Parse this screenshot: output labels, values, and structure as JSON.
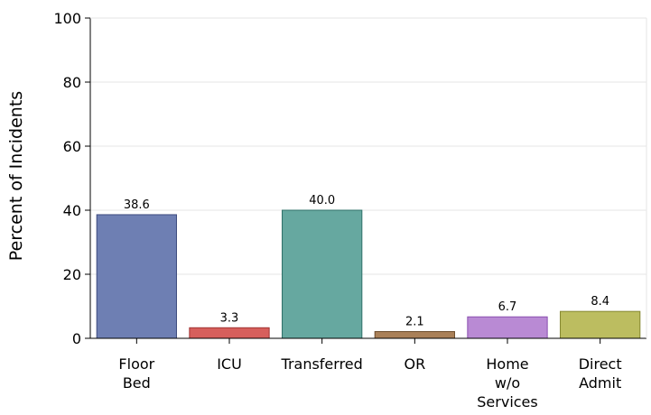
{
  "chart_data": {
    "type": "bar",
    "title": "",
    "xlabel": "",
    "ylabel": "Percent of Incidents",
    "ylim": [
      0,
      100
    ],
    "yticks": [
      0,
      20,
      40,
      60,
      80,
      100
    ],
    "grid": true,
    "categories": [
      [
        "Floor",
        "Bed"
      ],
      [
        "ICU"
      ],
      [
        "Transferred"
      ],
      [
        "OR"
      ],
      [
        "Home",
        "w/o",
        "Services"
      ],
      [
        "Direct",
        "Admit"
      ]
    ],
    "values": [
      38.6,
      3.3,
      40.0,
      2.1,
      6.7,
      8.4
    ],
    "value_labels": [
      "38.6",
      "3.3",
      "40.0",
      "2.1",
      "6.7",
      "8.4"
    ],
    "colors": [
      "#6e7fb3",
      "#d65f5c",
      "#66a8a0",
      "#a98058",
      "#b98ad4",
      "#bcbd60"
    ],
    "edge_colors": [
      "#3c4a7e",
      "#a03232",
      "#2e7068",
      "#6b4a2a",
      "#8a4fb0",
      "#85862e"
    ]
  }
}
